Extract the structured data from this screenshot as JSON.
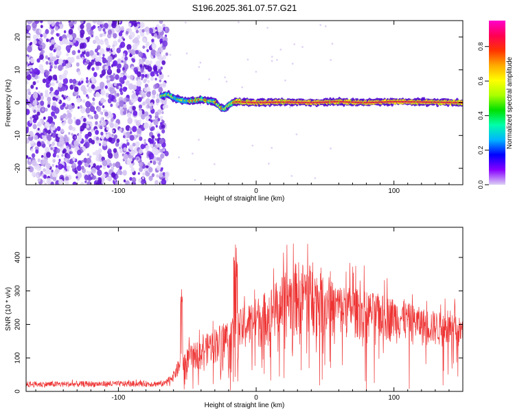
{
  "title": "S196.2025.361.07.57.G21",
  "chart_data": [
    {
      "type": "heatmap",
      "name": "spectrogram",
      "xlabel": "Height of straight line (km)",
      "ylabel": "Frequency (Hz)",
      "xlim": [
        -167,
        150
      ],
      "ylim": [
        -25,
        25
      ],
      "xticks": [
        -100,
        0,
        100
      ],
      "xtick_labels": [
        "-100",
        "0",
        "100"
      ],
      "yticks": [
        -20,
        -10,
        0,
        10,
        20
      ],
      "ytick_labels": [
        "-20",
        "-10",
        "0",
        "10",
        "20"
      ],
      "noise_region_x": [
        -167,
        -66
      ],
      "signal_start_x": -69,
      "signal_track": {
        "x": [
          -69,
          -64,
          -60,
          -55,
          -50,
          -45,
          -40,
          -35,
          -30,
          -26,
          -23,
          -20,
          -17,
          -14,
          -10,
          0,
          20,
          40,
          60,
          80,
          100,
          120,
          150
        ],
        "y": [
          2,
          2.5,
          1.5,
          0.8,
          0.5,
          0.6,
          1,
          0.6,
          0.2,
          -1.5,
          -2,
          -0.8,
          0,
          0.3,
          0.2,
          0,
          0.2,
          0,
          0.3,
          0,
          0.3,
          0.2,
          0
        ]
      }
    },
    {
      "type": "line",
      "name": "snr",
      "xlabel": "Height of straight line (km)",
      "ylabel": "SNR (10 * v/v)",
      "xlim": [
        -167,
        150
      ],
      "ylim": [
        0,
        490
      ],
      "xticks": [
        -100,
        0,
        100
      ],
      "xtick_labels": [
        "-100",
        "0",
        "100"
      ],
      "yticks": [
        0,
        100,
        200,
        300,
        400
      ],
      "ytick_labels": [
        "0",
        "100",
        "200",
        "300",
        "400"
      ],
      "color": "#ee3333",
      "envelope": {
        "x": [
          -167,
          -66,
          -60,
          -55,
          -50,
          -40,
          -30,
          -20,
          -10,
          0,
          10,
          20,
          30,
          40,
          50,
          60,
          80,
          100,
          120,
          150
        ],
        "y": [
          30,
          32,
          60,
          110,
          130,
          160,
          190,
          220,
          250,
          280,
          310,
          350,
          390,
          380,
          340,
          320,
          300,
          280,
          250,
          220
        ]
      },
      "noise_floor": {
        "x": [
          -167,
          -66,
          -55,
          -40,
          -20,
          0,
          20,
          40,
          80,
          150
        ],
        "y": [
          12,
          14,
          40,
          70,
          90,
          120,
          150,
          160,
          150,
          120
        ]
      }
    }
  ],
  "colorbar": {
    "label": "Normalized spectral amplitude",
    "ticks": [
      "0.0",
      "0.2",
      "0.4",
      "0.6",
      "0.8"
    ],
    "tick_values": [
      0,
      0.2,
      0.4,
      0.6,
      0.8
    ],
    "range": [
      0,
      0.95
    ],
    "colors": [
      "#dcd0f4",
      "#8800ff",
      "#0000ff",
      "#00b4ff",
      "#00ffaa",
      "#00e000",
      "#aaff00",
      "#ffff00",
      "#ffaa00",
      "#ff3300",
      "#ff0055",
      "#ff00cc"
    ]
  }
}
